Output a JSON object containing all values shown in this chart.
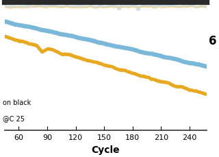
{
  "xlabel": "Cycle",
  "xlim": [
    45,
    258
  ],
  "ylim": [
    55,
    115
  ],
  "xticks": [
    60,
    90,
    120,
    150,
    180,
    210,
    240
  ],
  "bg_color": "#ffffff",
  "line_blue_color": "#7ab8d9",
  "line_orange_color": "#e8a820",
  "eff_blue_color": "#c5dff0",
  "eff_orange_color": "#f0d090",
  "top_bar_color": "#2a2a2a",
  "annotation_text": "6",
  "legend_line1": "on black",
  "legend_line2": "@C 25",
  "blue_start": 106,
  "blue_end": 85,
  "orange_start": 99,
  "orange_end": 72,
  "eff_level": 113,
  "seed1": 42,
  "seed2": 7
}
